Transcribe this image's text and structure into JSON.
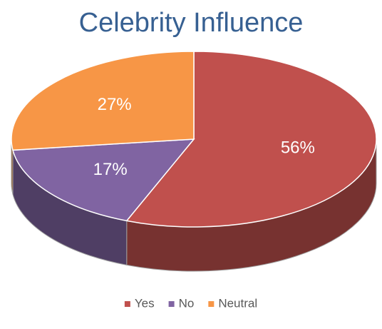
{
  "chart_data": {
    "type": "pie",
    "title": "Celebrity Influence",
    "categories": [
      "Yes",
      "No",
      "Neutral"
    ],
    "values": [
      56,
      17,
      27
    ],
    "value_labels": [
      "56%",
      "17%",
      "27%"
    ],
    "colors": [
      "#c0504d",
      "#8064a2",
      "#f79646"
    ],
    "legend": "bottom"
  }
}
